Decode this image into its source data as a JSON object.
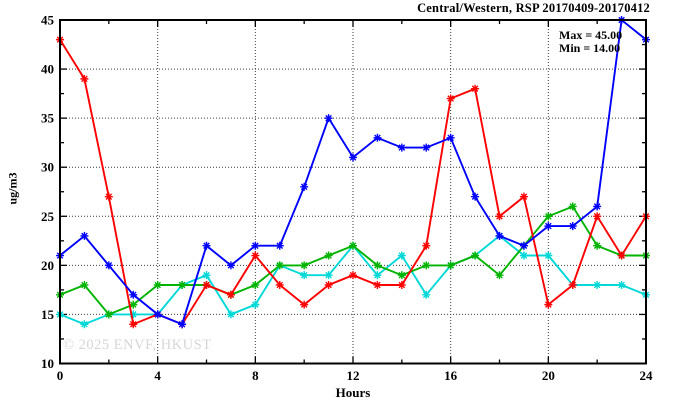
{
  "title": "Central/Western, RSP 20170409-20170412",
  "legend": {
    "max_label": "Max = 45.00",
    "min_label": "Min = 14.00"
  },
  "watermark": "© 2025 ENVF, HKUST",
  "colors": {
    "axis": "#000000",
    "grid": "#3c3c3c",
    "background": "#ffffff",
    "watermark": "#d6d6d6"
  },
  "chart_data": {
    "type": "line",
    "title": "Central/Western, RSP 20170409-20170412",
    "xlabel": "Hours",
    "ylabel": "ug/m3",
    "xlim": [
      0,
      24
    ],
    "ylim": [
      10,
      45
    ],
    "xticks": [
      0,
      4,
      8,
      12,
      16,
      20,
      24
    ],
    "xticks_minor": [
      2,
      6,
      10,
      14,
      18,
      22
    ],
    "yticks": [
      10,
      15,
      20,
      25,
      30,
      35,
      40,
      45
    ],
    "yticks_minor": [
      12.5,
      17.5,
      22.5,
      27.5,
      32.5,
      37.5,
      42.5
    ],
    "grid": true,
    "legend_position": "top-right-inside",
    "max": 45.0,
    "min": 14.0,
    "x": [
      0,
      1,
      2,
      3,
      4,
      5,
      6,
      7,
      8,
      9,
      10,
      11,
      12,
      13,
      14,
      15,
      16,
      17,
      18,
      19,
      20,
      21,
      22,
      23,
      24
    ],
    "series": [
      {
        "name": "cyan-series",
        "color": "#00d8d8",
        "marker": "asterisk",
        "values": [
          15,
          14,
          15,
          15,
          15,
          18,
          19,
          15,
          16,
          20,
          19,
          19,
          22,
          19,
          21,
          17,
          20,
          21,
          23,
          21,
          21,
          18,
          18,
          18,
          17
        ]
      },
      {
        "name": "green-series",
        "color": "#00b400",
        "marker": "asterisk",
        "values": [
          17,
          18,
          15,
          16,
          18,
          18,
          18,
          17,
          18,
          20,
          20,
          21,
          22,
          20,
          19,
          20,
          20,
          21,
          19,
          22,
          25,
          26,
          22,
          21,
          21
        ]
      },
      {
        "name": "red-series",
        "color": "#ff0000",
        "marker": "asterisk",
        "values": [
          43,
          39,
          27,
          14,
          15,
          14,
          18,
          17,
          21,
          18,
          16,
          18,
          19,
          18,
          18,
          22,
          37,
          38,
          25,
          27,
          16,
          18,
          25,
          21,
          25
        ]
      },
      {
        "name": "blue-series",
        "color": "#0000ff",
        "marker": "asterisk",
        "values": [
          21,
          23,
          20,
          17,
          15,
          14,
          22,
          20,
          22,
          22,
          28,
          35,
          31,
          33,
          32,
          32,
          33,
          27,
          23,
          22,
          24,
          24,
          26,
          45,
          43
        ]
      }
    ]
  }
}
